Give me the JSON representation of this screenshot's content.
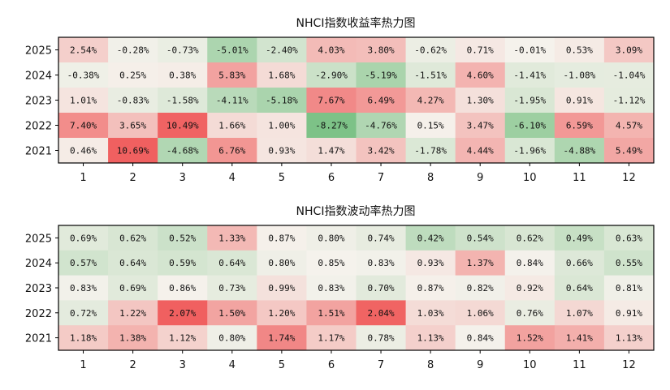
{
  "chart_data": [
    {
      "type": "heatmap",
      "title": "NHCI指数收益率热力图",
      "x_categories": [
        "1",
        "2",
        "3",
        "4",
        "5",
        "6",
        "7",
        "8",
        "9",
        "10",
        "11",
        "12"
      ],
      "y_categories": [
        "2025",
        "2024",
        "2023",
        "2022",
        "2021"
      ],
      "values": [
        [
          2.54,
          -0.28,
          -0.73,
          -5.01,
          -2.4,
          4.03,
          3.8,
          -0.62,
          0.71,
          -0.01,
          0.53,
          3.09
        ],
        [
          -0.38,
          0.25,
          0.38,
          5.83,
          1.68,
          -2.9,
          -5.19,
          -1.51,
          4.6,
          -1.41,
          -1.08,
          -1.04
        ],
        [
          1.01,
          -0.83,
          -1.58,
          -4.11,
          -5.18,
          7.67,
          6.49,
          4.27,
          1.3,
          -1.95,
          0.91,
          -1.12
        ],
        [
          7.4,
          3.65,
          10.49,
          1.66,
          1.0,
          -8.27,
          -4.76,
          0.15,
          3.47,
          -6.1,
          6.59,
          4.57
        ],
        [
          0.46,
          10.69,
          -4.68,
          6.76,
          0.93,
          1.47,
          3.42,
          -1.78,
          4.44,
          -1.96,
          -4.88,
          5.49
        ]
      ],
      "value_format": "percent",
      "colormap": {
        "low": "#5ab469",
        "mid": "#f5f2ec",
        "high": "#f06060",
        "center": 0
      }
    },
    {
      "type": "heatmap",
      "title": "NHCI指数波动率热力图",
      "x_categories": [
        "1",
        "2",
        "3",
        "4",
        "5",
        "6",
        "7",
        "8",
        "9",
        "10",
        "11",
        "12"
      ],
      "y_categories": [
        "2025",
        "2024",
        "2023",
        "2022",
        "2021"
      ],
      "values": [
        [
          0.69,
          0.62,
          0.52,
          1.33,
          0.87,
          0.8,
          0.74,
          0.42,
          0.54,
          0.62,
          0.49,
          0.63
        ],
        [
          0.57,
          0.64,
          0.59,
          0.64,
          0.8,
          0.85,
          0.83,
          0.93,
          1.37,
          0.84,
          0.66,
          0.55
        ],
        [
          0.83,
          0.69,
          0.86,
          0.73,
          0.99,
          0.83,
          0.7,
          0.87,
          0.82,
          0.92,
          0.64,
          0.81
        ],
        [
          0.72,
          1.22,
          2.07,
          1.5,
          1.2,
          1.51,
          2.04,
          1.03,
          1.06,
          0.76,
          1.07,
          0.91
        ],
        [
          1.18,
          1.38,
          1.12,
          0.8,
          1.74,
          1.17,
          0.78,
          1.13,
          0.84,
          1.52,
          1.41,
          1.13
        ]
      ],
      "value_format": "percent",
      "colormap": {
        "low": "#5ab469",
        "mid": "#f5f2ec",
        "high": "#f06060",
        "center": 0.85
      }
    }
  ]
}
